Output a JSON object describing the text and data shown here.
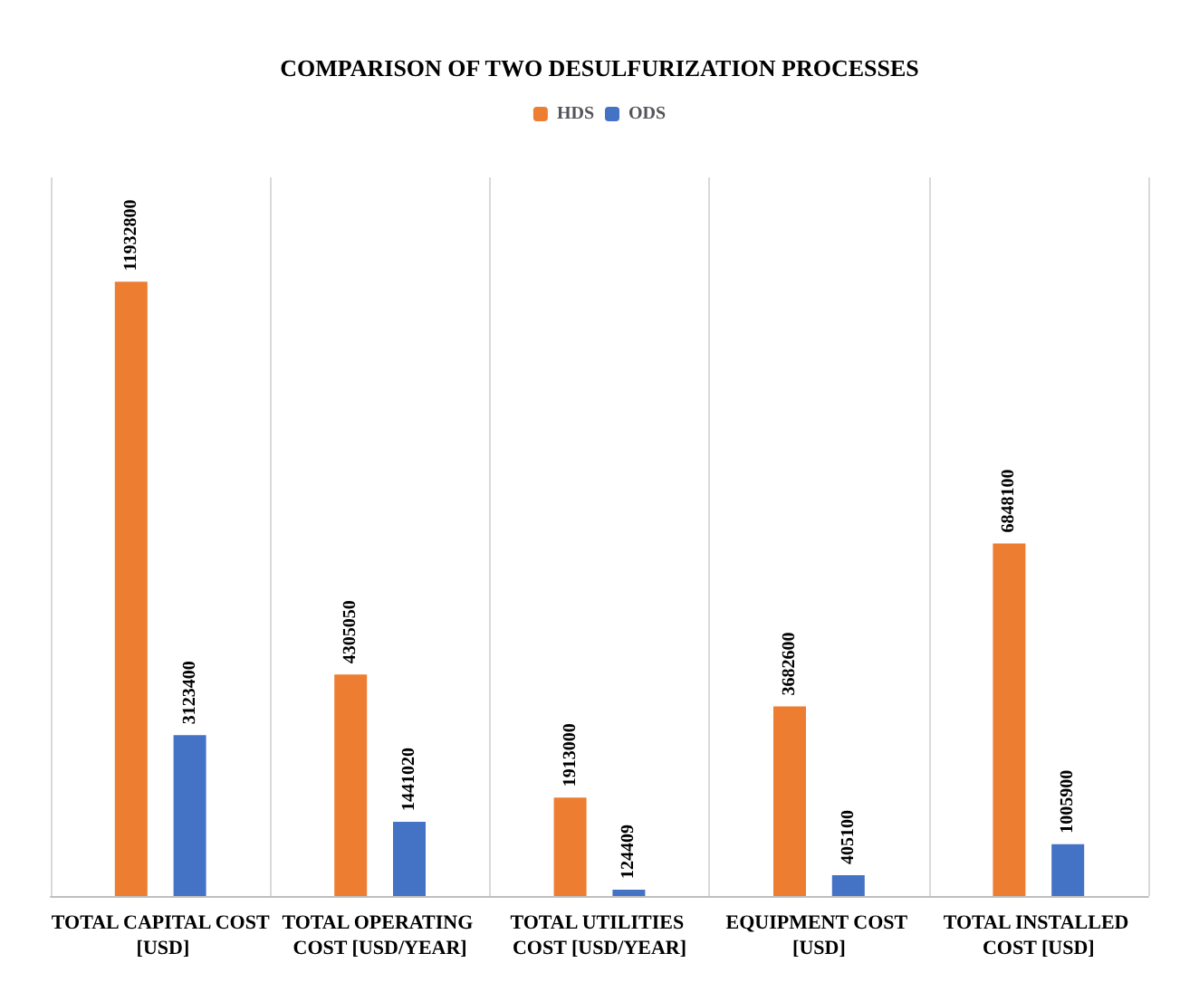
{
  "chart_data": {
    "type": "bar",
    "title": "COMPARISON OF TWO DESULFURIZATION PROCESSES",
    "categories": [
      "TOTAL CAPITAL COST [USD]",
      "TOTAL OPERATING COST [USD/YEAR]",
      "TOTAL UTILITIES COST [USD/YEAR]",
      "EQUIPMENT COST [USD]",
      "TOTAL INSTALLED COST [USD]"
    ],
    "series": [
      {
        "name": "HDS",
        "color": "#ed7d31",
        "values": [
          11932800,
          4305050,
          1913000,
          3682600,
          6848100
        ]
      },
      {
        "name": "ODS",
        "color": "#4472c4",
        "values": [
          3123400,
          1441020,
          124409,
          405100,
          1005900
        ]
      }
    ],
    "data_labels": true,
    "grid": "x",
    "legend": "top"
  }
}
